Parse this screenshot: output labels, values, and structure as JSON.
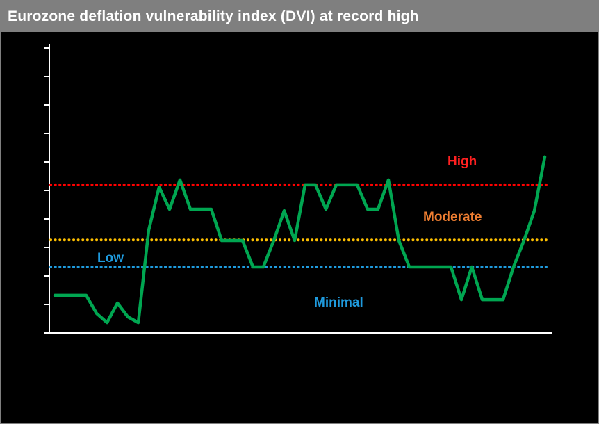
{
  "title": "Eurozone deflation vulnerability index (DVI) at record high",
  "colors": {
    "title_bar_bg": "#7f7f7f",
    "title_text": "#ffffff",
    "plot_bg": "#000000",
    "axis": "#ffffff",
    "series_green": "#00A651",
    "high_red": "#FF0000",
    "moderate_orange": "#ED7D31",
    "moderate_line": "#FFC000",
    "low_blue": "#1F9BDE"
  },
  "chart_data": {
    "type": "line",
    "title": "Eurozone deflation vulnerability index (DVI) at record high",
    "xlabel": "",
    "ylabel": "",
    "ylim": [
      0,
      1
    ],
    "x_tick_labels_visible": false,
    "y_tick_labels_visible": false,
    "y_tick_count": 11,
    "grid": false,
    "legend": false,
    "series": [
      {
        "name": "Eurozone deflation vulnerability index (DVI)",
        "color": "#00A651",
        "values": [
          0.131,
          0.131,
          0.131,
          0.131,
          0.068,
          0.036,
          0.104,
          0.056,
          0.036,
          0.358,
          0.508,
          0.431,
          0.533,
          0.431,
          0.431,
          0.431,
          0.322,
          0.322,
          0.322,
          0.23,
          0.23,
          0.322,
          0.426,
          0.322,
          0.516,
          0.516,
          0.431,
          0.516,
          0.516,
          0.516,
          0.431,
          0.431,
          0.533,
          0.322,
          0.23,
          0.23,
          0.23,
          0.23,
          0.23,
          0.116,
          0.23,
          0.116,
          0.116,
          0.116,
          0.23,
          0.322,
          0.426,
          0.613
        ]
      }
    ],
    "thresholds": [
      {
        "label": "High",
        "value": 0.516,
        "line_color": "#FF0000",
        "label_color": "#FF2020"
      },
      {
        "label": "Moderate",
        "value": 0.324,
        "line_color": "#FFC000",
        "label_color": "#ED7D31"
      },
      {
        "label": "Low",
        "value": 0.23,
        "line_color": "#1F9BDE",
        "label_color": "#1F9BDE"
      }
    ],
    "zone_label": {
      "label": "Minimal",
      "color": "#1F9BDE"
    },
    "annotations": [
      "High",
      "Moderate",
      "Low",
      "Minimal"
    ]
  }
}
